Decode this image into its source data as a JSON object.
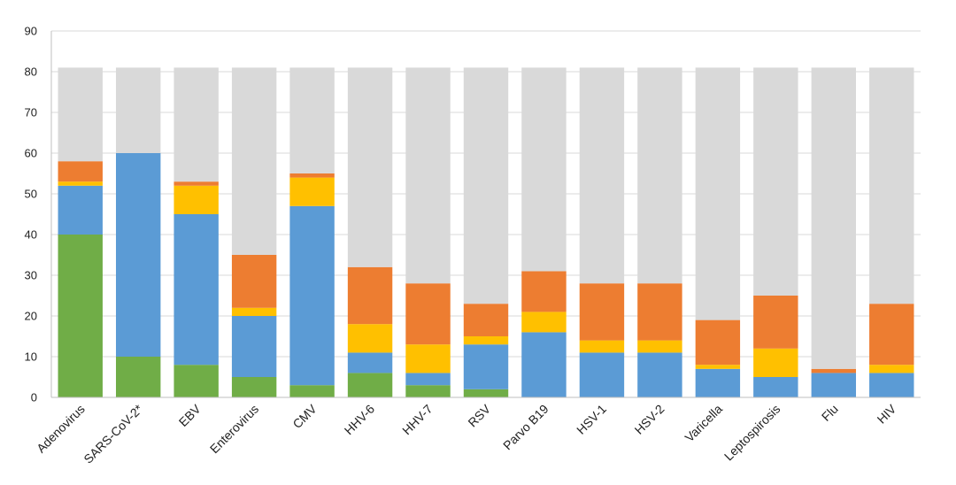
{
  "chart_data": {
    "type": "bar",
    "stacked": true,
    "title": "",
    "xlabel": "",
    "ylabel": "",
    "ylim": [
      0,
      90
    ],
    "ytick_step": 10,
    "grid": true,
    "legend": "none",
    "categories": [
      "Adenovirus",
      "SARS-CoV-2*",
      "EBV",
      "Enterovirus",
      "CMV",
      "HHV-6",
      "HHV-7",
      "RSV",
      "Parvo B19",
      "HSV-1",
      "HSV-2",
      "Varicella",
      "Leptospirosis",
      "Flu",
      "HIV"
    ],
    "series": [
      {
        "color": "#70ad47",
        "values": [
          40,
          10,
          8,
          5,
          3,
          6,
          3,
          2,
          0,
          0,
          0,
          0,
          0,
          0,
          0
        ]
      },
      {
        "color": "#5b9bd5",
        "values": [
          12,
          50,
          37,
          15,
          44,
          5,
          3,
          11,
          16,
          11,
          11,
          7,
          5,
          6,
          6
        ]
      },
      {
        "color": "#ffc000",
        "values": [
          1,
          0,
          7,
          2,
          7,
          7,
          7,
          2,
          5,
          3,
          3,
          1,
          7,
          0,
          2
        ]
      },
      {
        "color": "#ed7d31",
        "values": [
          5,
          0,
          1,
          13,
          1,
          14,
          15,
          8,
          10,
          14,
          14,
          11,
          13,
          1,
          15
        ]
      },
      {
        "color": "#d9d9d9",
        "values": [
          23,
          21,
          28,
          46,
          26,
          49,
          53,
          58,
          50,
          53,
          53,
          62,
          56,
          74,
          58
        ]
      }
    ]
  }
}
